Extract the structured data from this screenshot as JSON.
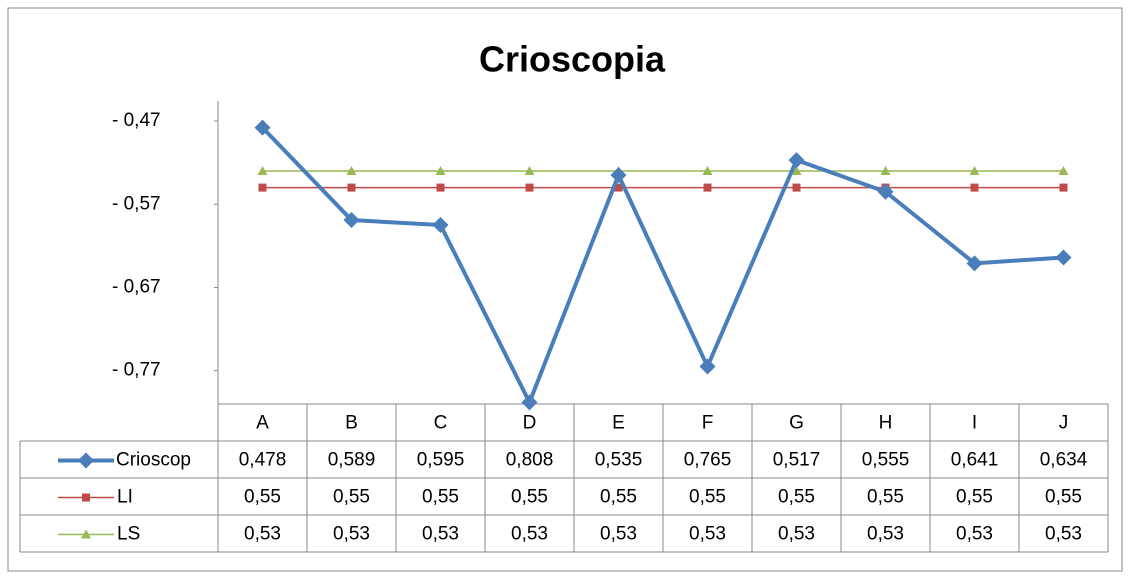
{
  "chart_data": {
    "type": "line",
    "title": "Crioscopia",
    "categories": [
      "A",
      "B",
      "C",
      "D",
      "E",
      "F",
      "G",
      "H",
      "I",
      "J"
    ],
    "series": [
      {
        "name": "Crioscop",
        "color": "#4a7ebb",
        "values": [
          0.478,
          0.589,
          0.595,
          0.808,
          0.535,
          0.765,
          0.517,
          0.555,
          0.641,
          0.634
        ],
        "value_labels": [
          "0,478",
          "0,589",
          "0,595",
          "0,808",
          "0,535",
          "0,765",
          "0,517",
          "0,555",
          "0,641",
          "0,634"
        ]
      },
      {
        "name": "LI",
        "color": "#be4b48",
        "values": [
          0.55,
          0.55,
          0.55,
          0.55,
          0.55,
          0.55,
          0.55,
          0.55,
          0.55,
          0.55
        ],
        "value_labels": [
          "0,55",
          "0,55",
          "0,55",
          "0,55",
          "0,55",
          "0,55",
          "0,55",
          "0,55",
          "0,55",
          "0,55"
        ]
      },
      {
        "name": "LS",
        "color": "#98b954",
        "values": [
          0.53,
          0.53,
          0.53,
          0.53,
          0.53,
          0.53,
          0.53,
          0.53,
          0.53,
          0.53
        ],
        "value_labels": [
          "0,53",
          "0,53",
          "0,53",
          "0,53",
          "0,53",
          "0,53",
          "0,53",
          "0,53",
          "0,53",
          "0,53"
        ]
      }
    ],
    "ylim": [
      0.47,
      0.81
    ],
    "y_reversed": true,
    "yticks": [
      {
        "value": 0.47,
        "label": "-  0,47"
      },
      {
        "value": 0.57,
        "label": "-  0,57"
      },
      {
        "value": 0.67,
        "label": "-  0,67"
      },
      {
        "value": 0.77,
        "label": "-  0,77"
      }
    ],
    "data_table": true
  }
}
